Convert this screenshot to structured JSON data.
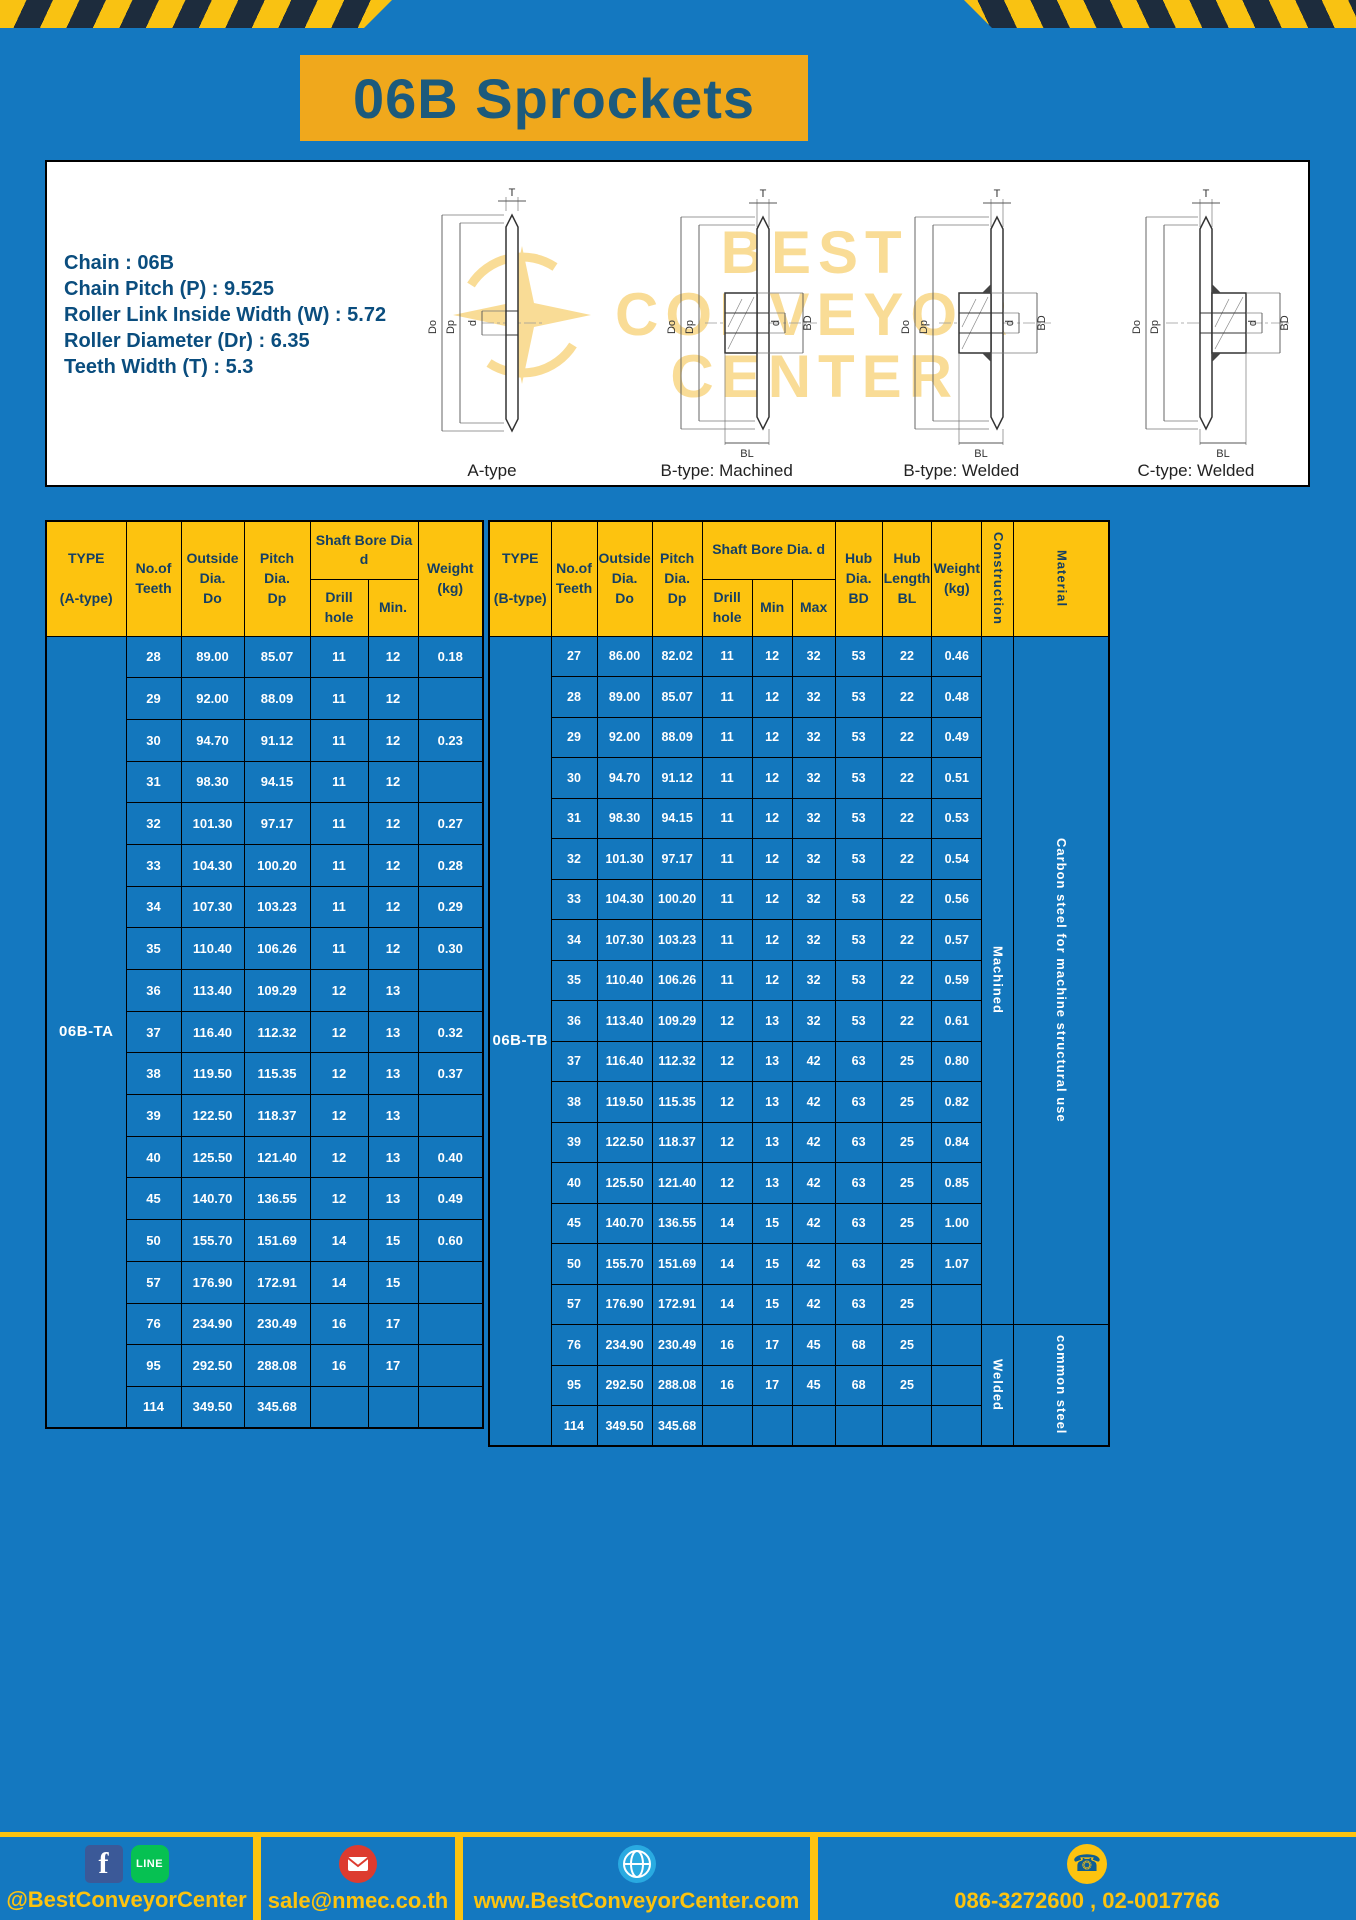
{
  "title": "06B Sprockets",
  "specs": {
    "chain": "Chain  :  06B",
    "pitch": "Chain Pitch (P)  :  9.525",
    "roller_width": "Roller Link Inside Width (W)  :  5.72",
    "roller_dia": "Roller Diameter (Dr)  :  6.35",
    "teeth_width": "Teeth Width (T)  :  5.3"
  },
  "watermark": {
    "line1": "BEST",
    "line2": "CONVEYOR",
    "line3": "CENTER"
  },
  "diagrams": [
    {
      "label": "A-type",
      "dims": [
        "T",
        "Do",
        "Dp",
        "d"
      ]
    },
    {
      "label": "B-type: Machined",
      "dims": [
        "T",
        "Do",
        "Dp",
        "d",
        "BD",
        "BL"
      ]
    },
    {
      "label": "B-type: Welded",
      "dims": [
        "T",
        "Do",
        "Dp",
        "d",
        "BD",
        "BL"
      ]
    },
    {
      "label": "C-type: Welded",
      "dims": [
        "T",
        "Do",
        "Dp",
        "d",
        "BD",
        "BL"
      ]
    }
  ],
  "table_a": {
    "headers": {
      "type": "TYPE\n\n(A-type)",
      "teeth": "No.of\nTeeth",
      "outside": "Outside\nDia.\nDo",
      "pitch": "Pitch Dia.\nDp",
      "bore_group": "Shaft Bore Dia d",
      "drill": "Drill hole",
      "min": "Min.",
      "weight": "Weight\n(kg)"
    },
    "type_value": "06B-TA",
    "rows": [
      [
        "28",
        "89.00",
        "85.07",
        "11",
        "12",
        "0.18"
      ],
      [
        "29",
        "92.00",
        "88.09",
        "11",
        "12",
        ""
      ],
      [
        "30",
        "94.70",
        "91.12",
        "11",
        "12",
        "0.23"
      ],
      [
        "31",
        "98.30",
        "94.15",
        "11",
        "12",
        ""
      ],
      [
        "32",
        "101.30",
        "97.17",
        "11",
        "12",
        "0.27"
      ],
      [
        "33",
        "104.30",
        "100.20",
        "11",
        "12",
        "0.28"
      ],
      [
        "34",
        "107.30",
        "103.23",
        "11",
        "12",
        "0.29"
      ],
      [
        "35",
        "110.40",
        "106.26",
        "11",
        "12",
        "0.30"
      ],
      [
        "36",
        "113.40",
        "109.29",
        "12",
        "13",
        ""
      ],
      [
        "37",
        "116.40",
        "112.32",
        "12",
        "13",
        "0.32"
      ],
      [
        "38",
        "119.50",
        "115.35",
        "12",
        "13",
        "0.37"
      ],
      [
        "39",
        "122.50",
        "118.37",
        "12",
        "13",
        ""
      ],
      [
        "40",
        "125.50",
        "121.40",
        "12",
        "13",
        "0.40"
      ],
      [
        "45",
        "140.70",
        "136.55",
        "12",
        "13",
        "0.49"
      ],
      [
        "50",
        "155.70",
        "151.69",
        "14",
        "15",
        "0.60"
      ],
      [
        "57",
        "176.90",
        "172.91",
        "14",
        "15",
        ""
      ],
      [
        "76",
        "234.90",
        "230.49",
        "16",
        "17",
        ""
      ],
      [
        "95",
        "292.50",
        "288.08",
        "16",
        "17",
        ""
      ],
      [
        "114",
        "349.50",
        "345.68",
        "",
        "",
        ""
      ]
    ]
  },
  "table_b": {
    "headers": {
      "type": "TYPE\n\n(B-type)",
      "teeth": "No.of\nTeeth",
      "outside": "Outside\nDia.\nDo",
      "pitch": "Pitch\nDia.\nDp",
      "bore_group": "Shaft Bore Dia. d",
      "drill": "Drill hole",
      "min": "Min",
      "max": "Max",
      "hub_dia": "Hub\nDia.\nBD",
      "hub_len": "Hub\nLength\nBL",
      "weight": "Weight\n(kg)",
      "construction": "Construction",
      "material": "Material"
    },
    "type_value": "06B-TB",
    "rows": [
      [
        "27",
        "86.00",
        "82.02",
        "11",
        "12",
        "32",
        "53",
        "22",
        "0.46"
      ],
      [
        "28",
        "89.00",
        "85.07",
        "11",
        "12",
        "32",
        "53",
        "22",
        "0.48"
      ],
      [
        "29",
        "92.00",
        "88.09",
        "11",
        "12",
        "32",
        "53",
        "22",
        "0.49"
      ],
      [
        "30",
        "94.70",
        "91.12",
        "11",
        "12",
        "32",
        "53",
        "22",
        "0.51"
      ],
      [
        "31",
        "98.30",
        "94.15",
        "11",
        "12",
        "32",
        "53",
        "22",
        "0.53"
      ],
      [
        "32",
        "101.30",
        "97.17",
        "11",
        "12",
        "32",
        "53",
        "22",
        "0.54"
      ],
      [
        "33",
        "104.30",
        "100.20",
        "11",
        "12",
        "32",
        "53",
        "22",
        "0.56"
      ],
      [
        "34",
        "107.30",
        "103.23",
        "11",
        "12",
        "32",
        "53",
        "22",
        "0.57"
      ],
      [
        "35",
        "110.40",
        "106.26",
        "11",
        "12",
        "32",
        "53",
        "22",
        "0.59"
      ],
      [
        "36",
        "113.40",
        "109.29",
        "12",
        "13",
        "32",
        "53",
        "22",
        "0.61"
      ],
      [
        "37",
        "116.40",
        "112.32",
        "12",
        "13",
        "42",
        "63",
        "25",
        "0.80"
      ],
      [
        "38",
        "119.50",
        "115.35",
        "12",
        "13",
        "42",
        "63",
        "25",
        "0.82"
      ],
      [
        "39",
        "122.50",
        "118.37",
        "12",
        "13",
        "42",
        "63",
        "25",
        "0.84"
      ],
      [
        "40",
        "125.50",
        "121.40",
        "12",
        "13",
        "42",
        "63",
        "25",
        "0.85"
      ],
      [
        "45",
        "140.70",
        "136.55",
        "14",
        "15",
        "42",
        "63",
        "25",
        "1.00"
      ],
      [
        "50",
        "155.70",
        "151.69",
        "14",
        "15",
        "42",
        "63",
        "25",
        "1.07"
      ],
      [
        "57",
        "176.90",
        "172.91",
        "14",
        "15",
        "42",
        "63",
        "25",
        ""
      ],
      [
        "76",
        "234.90",
        "230.49",
        "16",
        "17",
        "45",
        "68",
        "25",
        ""
      ],
      [
        "95",
        "292.50",
        "288.08",
        "16",
        "17",
        "45",
        "68",
        "25",
        ""
      ],
      [
        "114",
        "349.50",
        "345.68",
        "",
        "",
        "",
        "",
        "",
        ""
      ]
    ],
    "construction_groups": [
      {
        "label": "Machined",
        "span": 17
      },
      {
        "label": "Welded",
        "span": 3
      }
    ],
    "material_groups": [
      {
        "label": "Carbon steel for machine structural use",
        "span": 17
      },
      {
        "label": "common steel",
        "span": 3
      }
    ]
  },
  "footer": {
    "fb_glyph": "f",
    "line_glyph": "LINE",
    "phone_glyph": "☎",
    "social_text": "@BestConveyorCenter",
    "email": "sale@nmec.co.th",
    "website": "www.BestConveyorCenter.com",
    "phone": "086-3272600 , 02-0017766"
  },
  "colors": {
    "page_blue": "#1478c0",
    "header_yellow": "#fdc30f",
    "banner_orange": "#f0a81c",
    "title_text": "#1c5a7c",
    "header_text": "#153f63"
  }
}
